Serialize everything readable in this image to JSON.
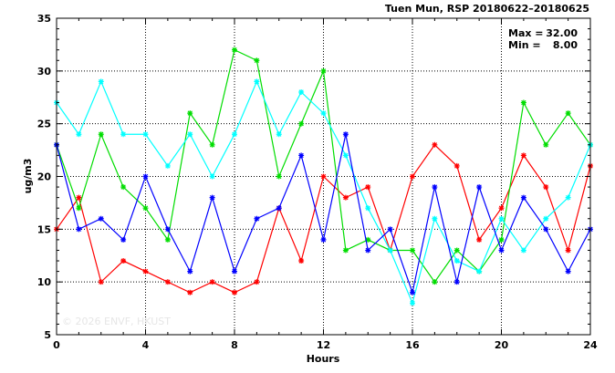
{
  "chart_data": {
    "type": "line",
    "title": "Tuen Mun, RSP 20180622–20180625",
    "xlabel": "Hours",
    "ylabel": "ug/m3",
    "xlim": [
      0,
      24
    ],
    "ylim": [
      5,
      35
    ],
    "xticks": [
      0,
      4,
      8,
      12,
      16,
      20,
      24
    ],
    "yticks": [
      5,
      10,
      15,
      20,
      25,
      30,
      35
    ],
    "grid": true,
    "stats": [
      {
        "label": "Max =",
        "value": "32.00"
      },
      {
        "label": "Min =",
        "value": "8.00"
      }
    ],
    "watermark": "© 2026 ENVF, HKUST",
    "x": [
      0,
      1,
      2,
      3,
      4,
      5,
      6,
      7,
      8,
      9,
      10,
      11,
      12,
      13,
      14,
      15,
      16,
      17,
      18,
      19,
      20,
      21,
      22,
      23,
      24
    ],
    "series": [
      {
        "color": "#ff0000",
        "values": [
          15,
          18,
          10,
          12,
          11,
          10,
          9,
          10,
          9,
          10,
          17,
          12,
          20,
          18,
          19,
          13,
          20,
          23,
          21,
          14,
          17,
          22,
          19,
          13,
          21
        ]
      },
      {
        "color": "#00dd00",
        "values": [
          23,
          17,
          24,
          19,
          17,
          14,
          26,
          23,
          32,
          31,
          20,
          25,
          30,
          13,
          14,
          13,
          13,
          10,
          13,
          11,
          14,
          27,
          23,
          26,
          23
        ]
      },
      {
        "color": "#00ffff",
        "values": [
          27,
          24,
          29,
          24,
          24,
          21,
          24,
          20,
          24,
          29,
          24,
          28,
          26,
          22,
          17,
          13,
          8,
          16,
          12,
          11,
          16,
          13,
          16,
          18,
          23
        ]
      },
      {
        "color": "#0000ff",
        "values": [
          23,
          15,
          16,
          14,
          20,
          15,
          11,
          18,
          11,
          16,
          17,
          22,
          14,
          24,
          13,
          15,
          9,
          19,
          10,
          19,
          13,
          18,
          15,
          11,
          15
        ]
      }
    ]
  }
}
